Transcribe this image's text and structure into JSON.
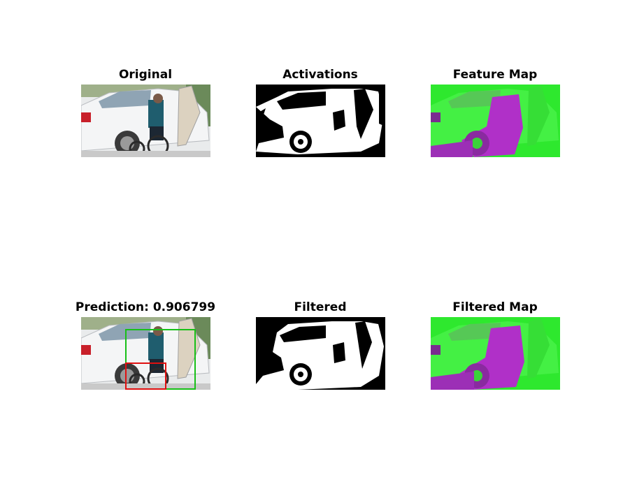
{
  "figure": {
    "panels": [
      {
        "id": "original",
        "title": "Original",
        "kind": "photo"
      },
      {
        "id": "activations",
        "title": "Activations",
        "kind": "binary"
      },
      {
        "id": "feature_map",
        "title": "Feature Map",
        "kind": "falsecolor"
      },
      {
        "id": "prediction",
        "title": "Prediction: 0.906799",
        "kind": "photo-boxes"
      },
      {
        "id": "filtered",
        "title": "Filtered",
        "kind": "binary"
      },
      {
        "id": "filtered_map",
        "title": "Filtered Map",
        "kind": "falsecolor"
      }
    ],
    "prediction_score": "0.906799",
    "box_colors": {
      "predicted": "#18c018",
      "reference": "#e01010"
    },
    "falsecolor_colors": {
      "background": "#2ee82e",
      "foreground": "#b030c8"
    }
  }
}
